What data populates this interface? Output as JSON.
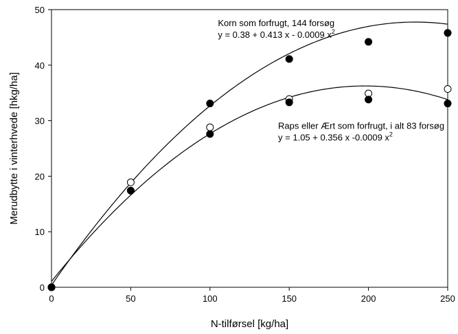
{
  "chart_data": {
    "type": "scatter",
    "xlabel": "N-tilførsel [kg/ha]",
    "ylabel": "Merudbytte i vinterhvede [hkg/ha]",
    "xlim": [
      0,
      250
    ],
    "ylim": [
      0,
      50
    ],
    "xticks": [
      0,
      50,
      100,
      150,
      200,
      250
    ],
    "yticks": [
      0,
      10,
      20,
      30,
      40,
      50
    ],
    "grid": false,
    "series": [
      {
        "marker": "filled",
        "x": [
          0,
          50,
          100,
          150,
          200,
          250
        ],
        "y": [
          0,
          17.4,
          33.1,
          41.1,
          44.2,
          45.8
        ],
        "fit": {
          "a": 0.38,
          "b": 0.413,
          "c": -0.0009
        }
      },
      {
        "marker": "filled",
        "x": [
          0,
          50,
          100,
          150,
          200,
          250
        ],
        "y": [
          0,
          17.4,
          27.6,
          33.3,
          33.8,
          33.1
        ],
        "fit": {
          "a": 1.05,
          "b": 0.356,
          "c": -0.0009
        }
      },
      {
        "marker": "open",
        "x": [
          0,
          50,
          100,
          150,
          200,
          250
        ],
        "y": [
          0,
          18.9,
          28.8,
          33.9,
          34.9,
          35.7
        ]
      }
    ],
    "annotations": [
      {
        "line1": "Korn som forfrugt, 144 forsøg",
        "line2_prefix": "y = 0.38 + 0.413 x - 0.0009 x",
        "superscript": "2",
        "anchor_x": 105,
        "anchor_y": 47
      },
      {
        "line1": "Raps eller Ært som forfrugt, i alt 83 forsøg",
        "line2_prefix": "y = 1.05 + 0.356 x -0.0009 x",
        "superscript": "2",
        "anchor_x": 143,
        "anchor_y": 28.5
      }
    ]
  }
}
